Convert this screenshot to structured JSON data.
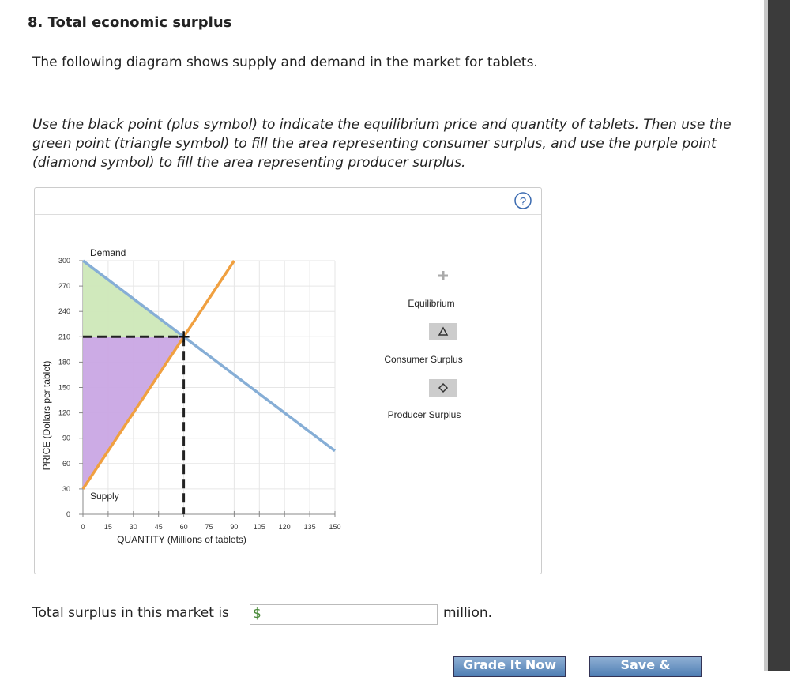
{
  "header": {
    "title": "8. Total economic surplus"
  },
  "intro": "The following diagram shows supply and demand in the market for tablets.",
  "instructions": "Use the black point (plus symbol) to indicate the equilibrium price and quantity of tablets. Then use the green point (triangle symbol) to fill the area representing consumer surplus, and use the purple point (diamond symbol) to fill the area representing producer surplus.",
  "help": "?",
  "chart_data": {
    "type": "line",
    "xlabel": "QUANTITY (Millions of tablets)",
    "ylabel": "PRICE (Dollars per tablet)",
    "xlim": [
      0,
      150
    ],
    "xticks": [
      0,
      15,
      30,
      45,
      60,
      75,
      90,
      105,
      120,
      135,
      150
    ],
    "ylim": [
      0,
      300
    ],
    "yticks": [
      0,
      30,
      60,
      90,
      120,
      150,
      180,
      210,
      240,
      270,
      300
    ],
    "grid": true,
    "series": [
      {
        "name": "Demand",
        "color": "#86aed6",
        "x": [
          0,
          150
        ],
        "values": [
          300,
          75
        ]
      },
      {
        "name": "Supply",
        "color": "#f0a040",
        "x": [
          0,
          90
        ],
        "values": [
          30,
          300
        ]
      }
    ],
    "point": {
      "name": "Equilibrium",
      "x": 60,
      "y": 210
    },
    "areas": [
      {
        "name": "Consumer Surplus",
        "color": "#cde8b8",
        "x": [
          0,
          0,
          60
        ],
        "values": [
          300,
          210,
          210
        ]
      },
      {
        "name": "Producer Surplus",
        "color": "#c9a7e4",
        "x": [
          0,
          60,
          0
        ],
        "values": [
          210,
          210,
          30
        ]
      }
    ]
  },
  "answer": {
    "prompt": "Total surplus in this market is",
    "currency": "$",
    "unit": "million."
  },
  "buttons": [
    "Grade It Now",
    "Save &"
  ]
}
